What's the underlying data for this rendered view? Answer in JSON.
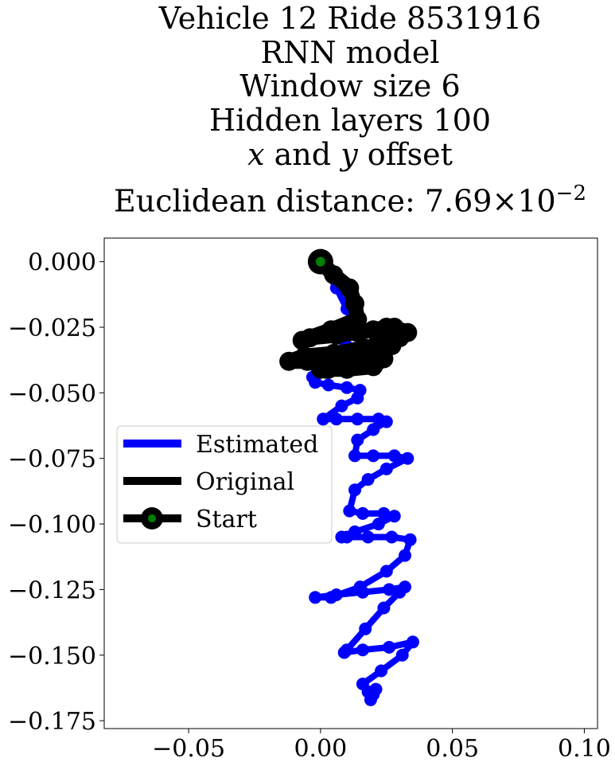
{
  "chart_data": {
    "type": "line",
    "title_lines": [
      "Vehicle 12 Ride 8531916",
      "RNN model",
      "Window size 6",
      "Hidden layers 100"
    ],
    "title_offset_line": {
      "x": "x",
      "and": "and",
      "y": "y",
      "suffix": "offset"
    },
    "title_distance": {
      "prefix": "Euclidean distance:",
      "mantissa": "7.69",
      "times": "×",
      "base": "10",
      "exponent": "−2"
    },
    "xlim": [
      -0.082,
      0.105
    ],
    "ylim": [
      -0.178,
      0.009
    ],
    "xticks": [
      -0.05,
      0.0,
      0.05,
      0.1
    ],
    "xtick_labels": [
      "−0.05",
      "0.00",
      "0.05",
      "0.10"
    ],
    "yticks": [
      0.0,
      -0.025,
      -0.05,
      -0.075,
      -0.1,
      -0.125,
      -0.15,
      -0.175
    ],
    "ytick_labels": [
      "0.000",
      "−0.025",
      "−0.050",
      "−0.075",
      "−0.100",
      "−0.125",
      "−0.150",
      "−0.175"
    ],
    "grid": false,
    "legend_position": "center-left",
    "series": [
      {
        "name": "Estimated",
        "color": "#0000ff",
        "x": [
          0.0,
          0.006,
          0.01,
          0.012,
          0.006,
          0.009,
          0.013,
          0.015,
          0.007,
          0.01,
          0.015,
          0.012,
          -0.003,
          -0.002,
          0.003,
          0.01,
          0.015,
          0.014,
          0.008,
          0.001,
          0.006,
          0.014,
          0.022,
          0.025,
          0.02,
          0.014,
          0.013,
          0.02,
          0.028,
          0.033,
          0.025,
          0.018,
          0.013,
          0.011,
          0.016,
          0.024,
          0.028,
          0.022,
          0.013,
          0.008,
          0.01,
          0.018,
          0.027,
          0.034,
          0.032,
          0.025,
          0.015,
          0.004,
          -0.002,
          0.006,
          0.016,
          0.026,
          0.032,
          0.03,
          0.024,
          0.017,
          0.01,
          0.009,
          0.016,
          0.026,
          0.035,
          0.031,
          0.023,
          0.016,
          0.018,
          0.021,
          0.02,
          0.019
        ],
        "y": [
          0.0,
          -0.01,
          -0.018,
          -0.024,
          -0.027,
          -0.03,
          -0.033,
          -0.036,
          -0.037,
          -0.038,
          -0.039,
          -0.041,
          -0.044,
          -0.046,
          -0.047,
          -0.048,
          -0.049,
          -0.052,
          -0.055,
          -0.06,
          -0.06,
          -0.06,
          -0.06,
          -0.061,
          -0.064,
          -0.068,
          -0.074,
          -0.074,
          -0.074,
          -0.075,
          -0.079,
          -0.083,
          -0.087,
          -0.095,
          -0.096,
          -0.096,
          -0.097,
          -0.1,
          -0.103,
          -0.105,
          -0.105,
          -0.105,
          -0.105,
          -0.106,
          -0.112,
          -0.118,
          -0.124,
          -0.128,
          -0.128,
          -0.127,
          -0.126,
          -0.125,
          -0.124,
          -0.126,
          -0.132,
          -0.14,
          -0.148,
          -0.149,
          -0.148,
          -0.147,
          -0.145,
          -0.15,
          -0.156,
          -0.161,
          -0.164,
          -0.163,
          -0.165,
          -0.167
        ]
      },
      {
        "name": "Original",
        "color": "#000000",
        "x": [
          0.0,
          0.005,
          0.011,
          0.013,
          0.014,
          0.004,
          -0.007,
          -0.004,
          0.006,
          0.014,
          0.02,
          0.025,
          0.028,
          0.033,
          0.026,
          0.017,
          0.005,
          -0.006,
          -0.012,
          -0.005,
          0.007,
          0.018,
          0.027,
          0.03,
          0.019,
          0.01,
          0.003,
          0.0,
          0.012,
          0.024,
          0.02,
          0.01,
          0.002
        ],
        "y": [
          0.0,
          -0.005,
          -0.01,
          -0.016,
          -0.022,
          -0.026,
          -0.03,
          -0.029,
          -0.028,
          -0.027,
          -0.026,
          -0.025,
          -0.025,
          -0.027,
          -0.03,
          -0.033,
          -0.035,
          -0.036,
          -0.038,
          -0.038,
          -0.036,
          -0.034,
          -0.032,
          -0.029,
          -0.034,
          -0.038,
          -0.041,
          -0.041,
          -0.039,
          -0.037,
          -0.04,
          -0.041,
          -0.041
        ]
      }
    ],
    "start_marker": {
      "name": "Start",
      "x": 0.0,
      "y": 0.0,
      "edge_color": "#000000",
      "face_color": "#008000"
    }
  }
}
